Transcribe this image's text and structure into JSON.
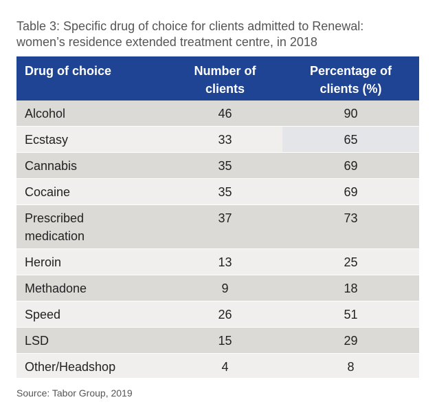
{
  "caption": {
    "line1": "Table 3: Specific drug of choice for clients admitted to Renewal:",
    "line2": "women’s residence extended treatment centre, in 2018"
  },
  "table": {
    "headers": {
      "drug": "Drug of choice",
      "number_line1": "Number of",
      "number_line2": "clients",
      "percent_line1": "Percentage of",
      "percent_line2": "clients (%)"
    },
    "rows": [
      {
        "drug_line1": "Alcohol",
        "drug_line2": "",
        "number": "46",
        "percent": "90"
      },
      {
        "drug_line1": "Ecstasy",
        "drug_line2": "",
        "number": "33",
        "percent": "65"
      },
      {
        "drug_line1": "Cannabis",
        "drug_line2": "",
        "number": "35",
        "percent": "69"
      },
      {
        "drug_line1": "Cocaine",
        "drug_line2": "",
        "number": "35",
        "percent": "69"
      },
      {
        "drug_line1": "Prescribed",
        "drug_line2": "medication",
        "number": "37",
        "percent": "73"
      },
      {
        "drug_line1": "Heroin",
        "drug_line2": "",
        "number": "13",
        "percent": "25"
      },
      {
        "drug_line1": "Methadone",
        "drug_line2": "",
        "number": "9",
        "percent": "18"
      },
      {
        "drug_line1": "Speed",
        "drug_line2": "",
        "number": "26",
        "percent": "51"
      },
      {
        "drug_line1": "LSD",
        "drug_line2": "",
        "number": "15",
        "percent": "29"
      },
      {
        "drug_line1": "Other/Headshop",
        "drug_line2": "",
        "number": "4",
        "percent": "8"
      }
    ]
  },
  "source": "Source: Tabor Group, 2019",
  "colors": {
    "header_bg": "#1f4494",
    "row_dark": "#dcdad7",
    "row_light": "#f1efed"
  }
}
